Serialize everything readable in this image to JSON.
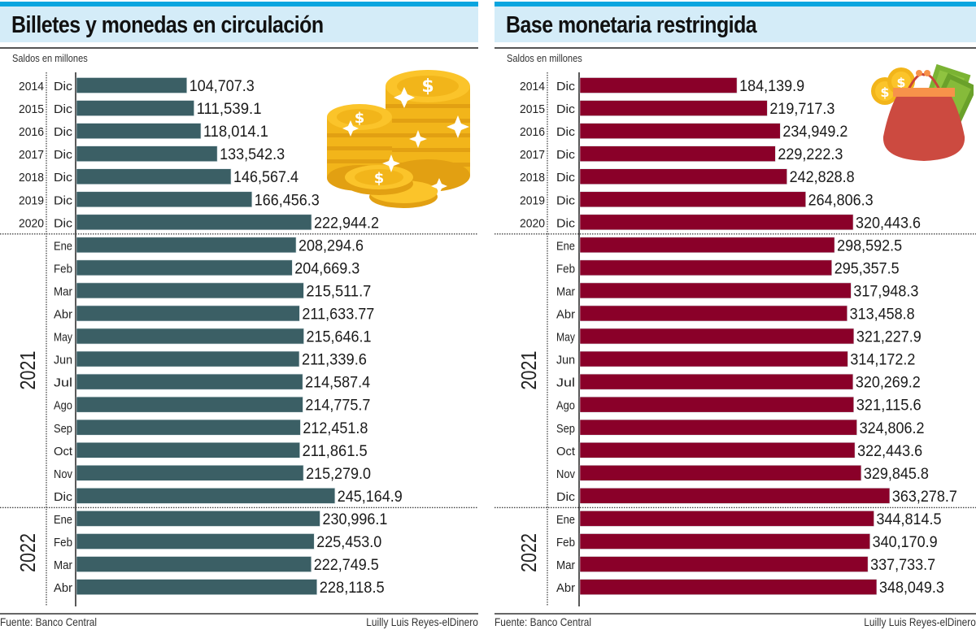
{
  "chart_data": [
    {
      "type": "bar",
      "orientation": "horizontal",
      "title": "Billetes y monedas en circulación",
      "subtitle": "Saldos en millones",
      "bar_color": "#3b5f65",
      "groups": [
        {
          "label": "",
          "rows": [
            {
              "year": "2014",
              "month": "Dic",
              "value": 104707.3,
              "label": "104,707.3"
            },
            {
              "year": "2015",
              "month": "Dic",
              "value": 111539.1,
              "label": "111,539.1"
            },
            {
              "year": "2016",
              "month": "Dic",
              "value": 118014.1,
              "label": "118,014.1"
            },
            {
              "year": "2017",
              "month": "Dic",
              "value": 133542.3,
              "label": "133,542.3"
            },
            {
              "year": "2018",
              "month": "Dic",
              "value": 146567.4,
              "label": "146,567.4"
            },
            {
              "year": "2019",
              "month": "Dic",
              "value": 166456.3,
              "label": "166,456.3"
            },
            {
              "year": "2020",
              "month": "Dic",
              "value": 222944.2,
              "label": "222,944.2"
            }
          ]
        },
        {
          "label": "2021",
          "rows": [
            {
              "month": "Ene",
              "value": 208294.6,
              "label": "208,294.6"
            },
            {
              "month": "Feb",
              "value": 204669.3,
              "label": "204,669.3"
            },
            {
              "month": "Mar",
              "value": 215511.7,
              "label": "215,511.7"
            },
            {
              "month": "Abr",
              "value": 211633.77,
              "label": "211,633.77"
            },
            {
              "month": "May",
              "value": 215646.1,
              "label": "215,646.1"
            },
            {
              "month": "Jun",
              "value": 211339.6,
              "label": "211,339.6"
            },
            {
              "month": "Jul",
              "value": 214587.4,
              "label": "214,587.4"
            },
            {
              "month": "Ago",
              "value": 214775.7,
              "label": "214,775.7"
            },
            {
              "month": "Sep",
              "value": 212451.8,
              "label": "212,451.8"
            },
            {
              "month": "Oct",
              "value": 211861.5,
              "label": "211,861.5"
            },
            {
              "month": "Nov",
              "value": 215279.0,
              "label": "215,279.0"
            },
            {
              "month": "Dic",
              "value": 245164.9,
              "label": "245,164.9"
            }
          ]
        },
        {
          "label": "2022",
          "rows": [
            {
              "month": "Ene",
              "value": 230996.1,
              "label": "230,996.1"
            },
            {
              "month": "Feb",
              "value": 225453.0,
              "label": "225,453.0"
            },
            {
              "month": "Mar",
              "value": 222749.5,
              "label": "222,749.5"
            },
            {
              "month": "Abr",
              "value": 228118.5,
              "label": "228,118.5"
            }
          ]
        }
      ],
      "xlim": [
        0,
        380000
      ],
      "grid": false,
      "source": "Fuente: Banco Central",
      "credit": "Luilly Luis Reyes-elDinero",
      "illustration": "gold-coins-icon"
    },
    {
      "type": "bar",
      "orientation": "horizontal",
      "title": "Base monetaria restringida",
      "subtitle": "Saldos en millones",
      "bar_color": "#8a0029",
      "groups": [
        {
          "label": "",
          "rows": [
            {
              "year": "2014",
              "month": "Dic",
              "value": 184139.9,
              "label": "184,139.9"
            },
            {
              "year": "2015",
              "month": "Dic",
              "value": 219717.3,
              "label": "219,717.3"
            },
            {
              "year": "2016",
              "month": "Dic",
              "value": 234949.2,
              "label": "234,949.2"
            },
            {
              "year": "2017",
              "month": "Dic",
              "value": 229222.3,
              "label": "229,222.3"
            },
            {
              "year": "2018",
              "month": "Dic",
              "value": 242828.8,
              "label": "242,828.8"
            },
            {
              "year": "2019",
              "month": "Dic",
              "value": 264806.3,
              "label": "264,806.3"
            },
            {
              "year": "2020",
              "month": "Dic",
              "value": 320443.6,
              "label": "320,443.6"
            }
          ]
        },
        {
          "label": "2021",
          "rows": [
            {
              "month": "Ene",
              "value": 298592.5,
              "label": "298,592.5"
            },
            {
              "month": "Feb",
              "value": 295357.5,
              "label": "295,357.5"
            },
            {
              "month": "Mar",
              "value": 317948.3,
              "label": "317,948.3"
            },
            {
              "month": "Abr",
              "value": 313458.8,
              "label": "313,458.8"
            },
            {
              "month": "May",
              "value": 321227.9,
              "label": "321,227.9"
            },
            {
              "month": "Jun",
              "value": 314172.2,
              "label": "314,172.2"
            },
            {
              "month": "Jul",
              "value": 320269.2,
              "label": "320,269.2"
            },
            {
              "month": "Ago",
              "value": 321115.6,
              "label": "321,115.6"
            },
            {
              "month": "Sep",
              "value": 324806.2,
              "label": "324,806.2"
            },
            {
              "month": "Oct",
              "value": 322443.6,
              "label": "322,443.6"
            },
            {
              "month": "Nov",
              "value": 329845.8,
              "label": "329,845.8"
            },
            {
              "month": "Dic",
              "value": 363278.7,
              "label": "363,278.7"
            }
          ]
        },
        {
          "label": "2022",
          "rows": [
            {
              "month": "Ene",
              "value": 344814.5,
              "label": "344,814.5"
            },
            {
              "month": "Feb",
              "value": 340170.9,
              "label": "340,170.9"
            },
            {
              "month": "Mar",
              "value": 337733.7,
              "label": "337,733.7"
            },
            {
              "month": "Abr",
              "value": 348049.3,
              "label": "348,049.3"
            }
          ]
        }
      ],
      "xlim": [
        0,
        480000
      ],
      "grid": false,
      "source": "Fuente: Banco Central",
      "credit": "Luilly Luis Reyes-elDinero",
      "illustration": "coin-purse-icon"
    }
  ]
}
